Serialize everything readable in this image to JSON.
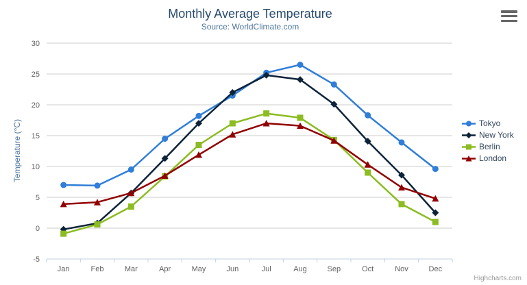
{
  "chart": {
    "title": "Monthly Average Temperature",
    "subtitle": "Source: WorldClimate.com",
    "yaxis_title": "Temperature (°C)",
    "credits": "Highcharts.com",
    "menu_icon": "hamburger-menu-icon",
    "colors": {
      "title": "#274b6d",
      "subtitle": "#4d759e",
      "axis_labels": "#606060",
      "gridline": "#cccccc",
      "xaxis_line": "#c0d0e0",
      "legend_text": "#33475b",
      "credits_text": "#999999"
    }
  },
  "chart_data": {
    "type": "line",
    "title": "Monthly Average Temperature",
    "subtitle": "Source: WorldClimate.com",
    "xlabel": "",
    "ylabel": "Temperature (°C)",
    "categories": [
      "Jan",
      "Feb",
      "Mar",
      "Apr",
      "May",
      "Jun",
      "Jul",
      "Aug",
      "Sep",
      "Oct",
      "Nov",
      "Dec"
    ],
    "series": [
      {
        "name": "Tokyo",
        "color": "#2f7ed8",
        "marker": "circle",
        "values": [
          7.0,
          6.9,
          9.5,
          14.5,
          18.2,
          21.5,
          25.2,
          26.5,
          23.3,
          18.3,
          13.9,
          9.6
        ]
      },
      {
        "name": "New York",
        "color": "#0d233a",
        "marker": "diamond",
        "values": [
          -0.2,
          0.8,
          5.7,
          11.3,
          17.0,
          22.0,
          24.8,
          24.1,
          20.1,
          14.1,
          8.6,
          2.5
        ]
      },
      {
        "name": "Berlin",
        "color": "#8bbc21",
        "marker": "square",
        "values": [
          -0.9,
          0.6,
          3.5,
          8.4,
          13.5,
          17.0,
          18.6,
          17.9,
          14.3,
          9.0,
          3.9,
          1.0
        ]
      },
      {
        "name": "London",
        "color": "#910000",
        "marker": "triangle",
        "values": [
          3.9,
          4.2,
          5.7,
          8.5,
          11.9,
          15.2,
          17.0,
          16.6,
          14.2,
          10.3,
          6.6,
          4.8
        ]
      }
    ],
    "ylim": [
      -5,
      30
    ],
    "ytick_step": 5,
    "grid": true,
    "legend_position": "right"
  }
}
